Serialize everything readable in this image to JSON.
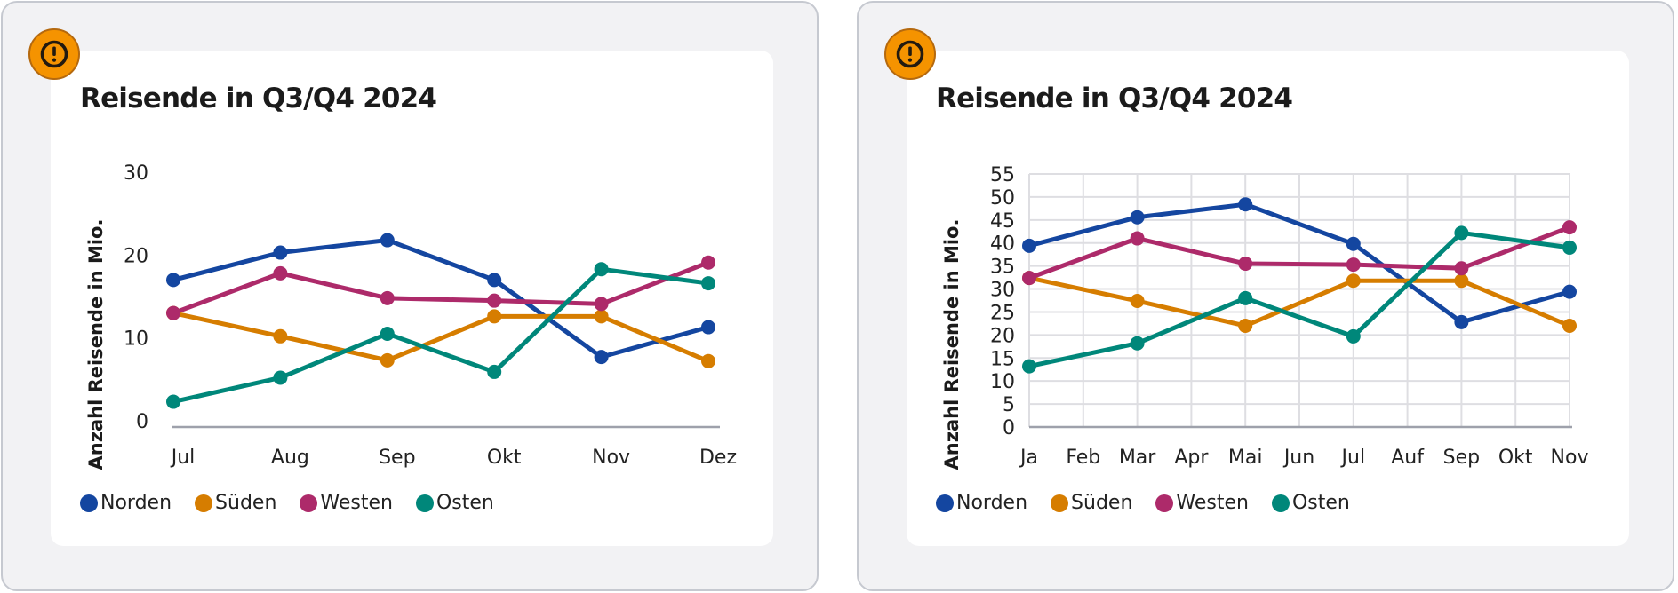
{
  "colors": {
    "Norden": "#1446a0",
    "Süden": "#d67d00",
    "Westen": "#ad2a6a",
    "Osten": "#00877a",
    "badge": "#f59300"
  },
  "badge_icon": "warning-exclamation-icon",
  "chart_data": [
    {
      "type": "line",
      "title": "Reisende in Q3/Q4 2024",
      "xlabel": "",
      "ylabel": "Anzahl Reisende in Mio.",
      "categories": [
        "Jul",
        "Aug",
        "Sep",
        "Okt",
        "Nov",
        "Dez"
      ],
      "yticks": [
        0,
        10,
        20,
        30
      ],
      "ylim": [
        0,
        30
      ],
      "grid": false,
      "legend": "bottom-left",
      "series": [
        {
          "name": "Norden",
          "values": [
            17,
            20.3,
            21.8,
            17,
            7.7,
            11.3
          ]
        },
        {
          "name": "Süden",
          "values": [
            13,
            10.2,
            7.3,
            12.6,
            12.6,
            7.2
          ]
        },
        {
          "name": "Westen",
          "values": [
            13,
            17.8,
            14.8,
            14.5,
            14.1,
            19.1
          ]
        },
        {
          "name": "Osten",
          "values": [
            2.3,
            5.2,
            10.5,
            5.9,
            18.3,
            16.6
          ]
        }
      ]
    },
    {
      "type": "line",
      "title": "Reisende in Q3/Q4 2024",
      "xlabel": "",
      "ylabel": "Anzahl Reisende in Mio.",
      "categories": [
        "Ja",
        "Feb",
        "Mar",
        "Apr",
        "Mai",
        "Jun",
        "Jul",
        "Auf",
        "Sep",
        "Okt",
        "Nov"
      ],
      "yticks": [
        0,
        5,
        10,
        15,
        20,
        25,
        30,
        35,
        40,
        45,
        50,
        55
      ],
      "ylim": [
        0,
        55
      ],
      "grid": true,
      "legend": "bottom-left",
      "series": [
        {
          "name": "Norden",
          "points": [
            [
              "Ja",
              39.4
            ],
            [
              "Mar",
              45.6
            ],
            [
              "Mai",
              48.4
            ],
            [
              "Jul",
              39.8
            ],
            [
              "Sep",
              22.8
            ],
            [
              "Nov",
              29.4
            ]
          ]
        },
        {
          "name": "Süden",
          "points": [
            [
              "Ja",
              32.4
            ],
            [
              "Mar",
              27.4
            ],
            [
              "Mai",
              22
            ],
            [
              "Jul",
              31.8
            ],
            [
              "Sep",
              31.8
            ],
            [
              "Nov",
              22
            ]
          ]
        },
        {
          "name": "Westen",
          "points": [
            [
              "Ja",
              32.4
            ],
            [
              "Mar",
              41
            ],
            [
              "Mai",
              35.5
            ],
            [
              "Jul",
              35.3
            ],
            [
              "Sep",
              34.5
            ],
            [
              "Nov",
              43.4
            ]
          ]
        },
        {
          "name": "Osten",
          "points": [
            [
              "Ja",
              13.2
            ],
            [
              "Mar",
              18.2
            ],
            [
              "Mai",
              28
            ],
            [
              "Jul",
              19.7
            ],
            [
              "Sep",
              42.2
            ],
            [
              "Nov",
              39
            ]
          ]
        }
      ]
    }
  ]
}
